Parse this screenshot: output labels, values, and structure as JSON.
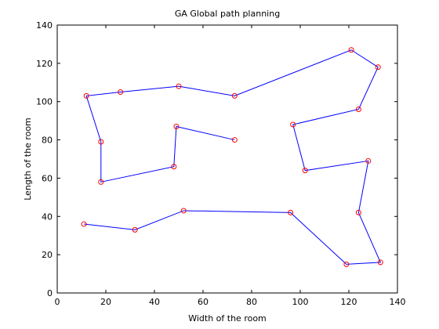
{
  "chart_data": {
    "type": "line",
    "title": "GA Global path planning",
    "xlabel": "Width of the room",
    "ylabel": "Length of the room",
    "xlim": [
      0,
      140
    ],
    "ylim": [
      0,
      140
    ],
    "xticks": [
      "0",
      "20",
      "40",
      "60",
      "80",
      "100",
      "120",
      "140"
    ],
    "yticks": [
      "0",
      "20",
      "40",
      "60",
      "80",
      "100",
      "120",
      "140"
    ],
    "grid": false,
    "line_color": "#0000ff",
    "marker_color": "#ff0000",
    "marker": "circle",
    "series": [
      {
        "x": [
          73,
          49,
          48,
          18,
          18,
          12,
          26,
          50,
          73,
          121,
          132,
          124,
          97,
          102,
          128,
          124,
          133,
          119,
          96,
          52,
          32,
          11
        ],
        "y": [
          80,
          87,
          66,
          58,
          79,
          103,
          105,
          108,
          103,
          127,
          118,
          96,
          88,
          64,
          69,
          42,
          16,
          15,
          42,
          43,
          33,
          36
        ]
      }
    ]
  }
}
